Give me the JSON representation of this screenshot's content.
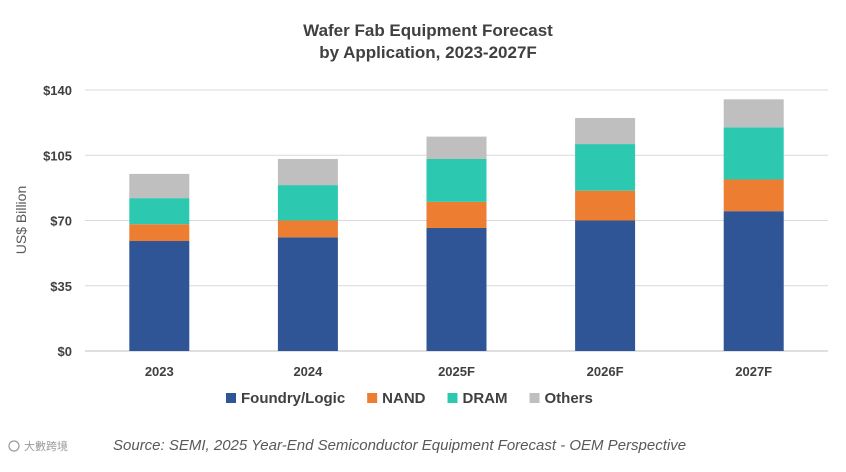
{
  "chart_data": {
    "type": "bar",
    "stacked": true,
    "title_line1": "Wafer Fab Equipment Forecast",
    "title_line2": "by Application, 2023-2027F",
    "ylabel": "US$ Billion",
    "xlabel": "",
    "ylim": [
      0,
      140
    ],
    "yticks": [
      "$0",
      "$35",
      "$70",
      "$105",
      "$140"
    ],
    "ytick_values": [
      0,
      35,
      70,
      105,
      140
    ],
    "grid": true,
    "legend_position": "bottom",
    "categories": [
      "2023",
      "2024",
      "2025F",
      "2026F",
      "2027F"
    ],
    "series": [
      {
        "name": "Foundry/Logic",
        "color": "#2F5597",
        "values": [
          59,
          61,
          66,
          70,
          75
        ]
      },
      {
        "name": "NAND",
        "color": "#ED7D31",
        "values": [
          9,
          9,
          14,
          16,
          17
        ]
      },
      {
        "name": "DRAM",
        "color": "#2CC9B0",
        "values": [
          14,
          19,
          23,
          25,
          28
        ]
      },
      {
        "name": "Others",
        "color": "#BFBFBF",
        "values": [
          13,
          14,
          12,
          14,
          15
        ]
      }
    ],
    "source": "Source: SEMI, 2025 Year-End Semiconductor Equipment Forecast - OEM Perspective",
    "watermark": "大數跨境"
  }
}
